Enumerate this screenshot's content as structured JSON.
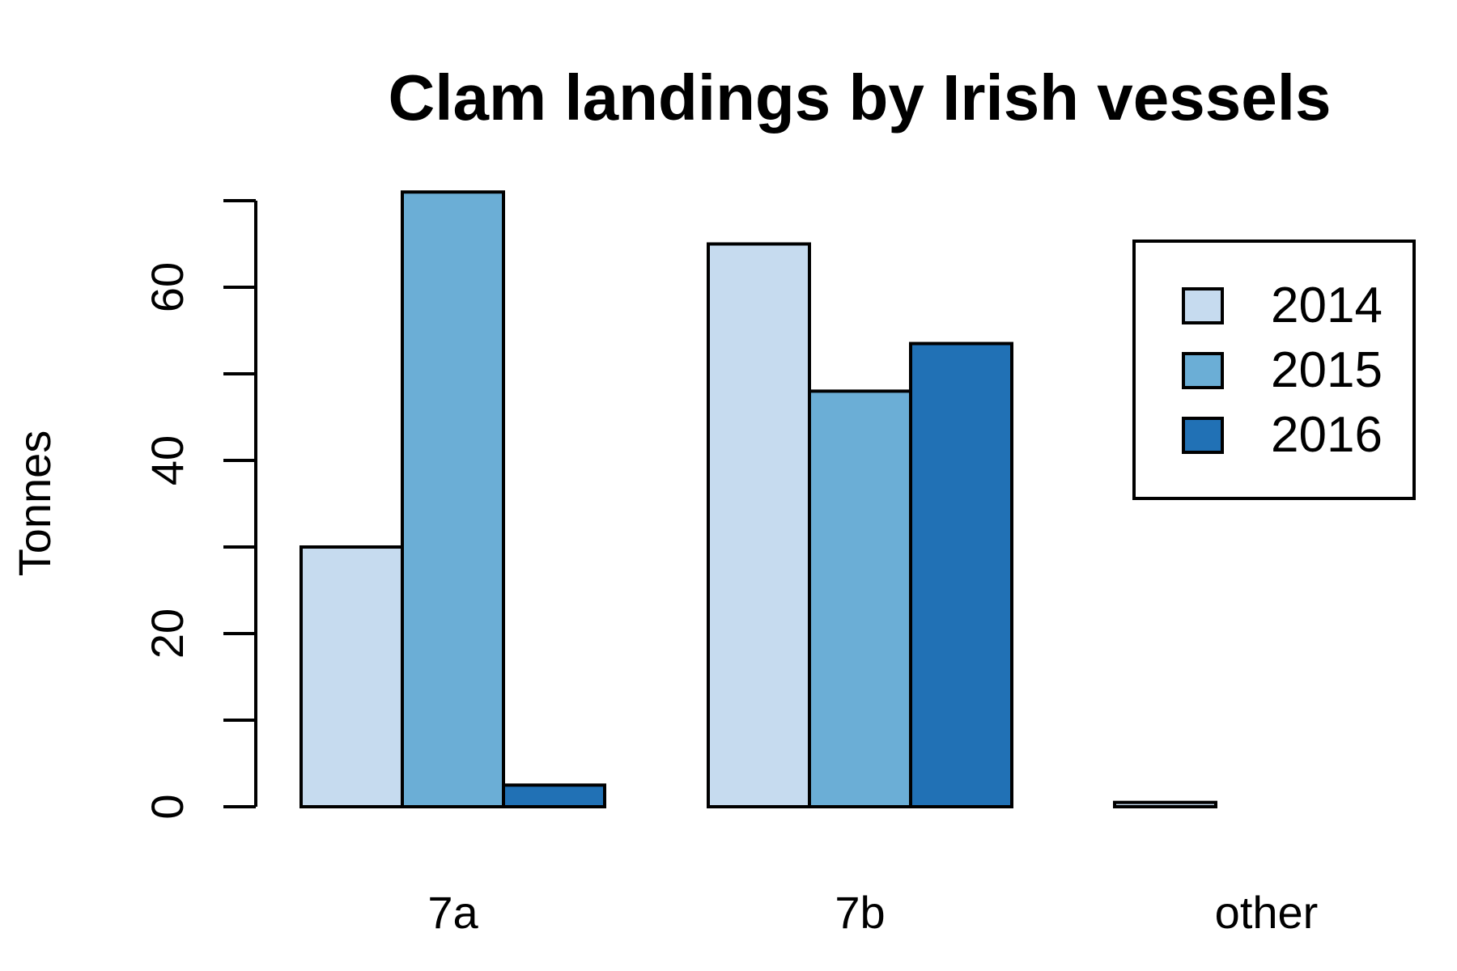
{
  "chart_data": {
    "type": "bar",
    "title": "Clam landings by Irish vessels",
    "xlabel": "",
    "ylabel": "Tonnes",
    "categories": [
      "7a",
      "7b",
      "other"
    ],
    "series": [
      {
        "name": "2014",
        "color": "#C6DBEF",
        "values": [
          30,
          65,
          0.5
        ]
      },
      {
        "name": "2015",
        "color": "#6BAED6",
        "values": [
          71,
          48,
          0
        ]
      },
      {
        "name": "2016",
        "color": "#2171B5",
        "values": [
          2.5,
          53.5,
          0
        ]
      }
    ],
    "ylim": [
      0,
      70
    ],
    "yticks": [
      0,
      10,
      20,
      30,
      40,
      50,
      60,
      70
    ],
    "ytick_labels": [
      "0",
      "",
      "20",
      "",
      "40",
      "",
      "60",
      ""
    ],
    "grid": false,
    "legend_position": "top-right"
  }
}
